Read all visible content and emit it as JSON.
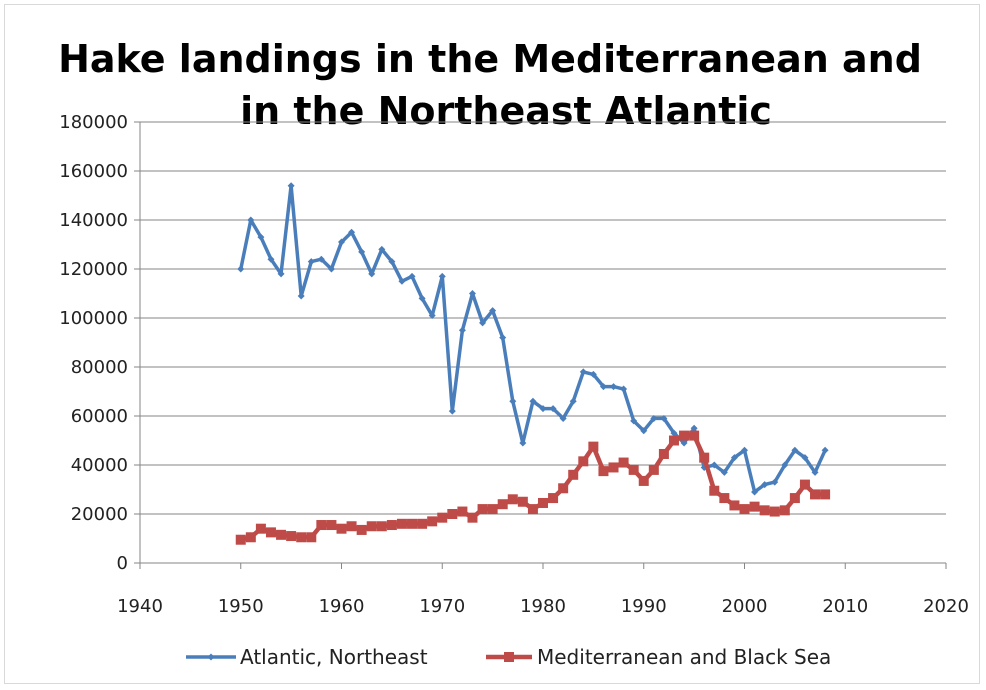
{
  "chart_data": {
    "type": "line",
    "title_lines": [
      "Hake landings in the Mediterranean and",
      "in the Northeast Atlantic"
    ],
    "xlabel": "",
    "ylabel": "",
    "xlim": [
      1940,
      2020
    ],
    "ylim": [
      0,
      180000
    ],
    "x_ticks": [
      1940,
      1950,
      1960,
      1970,
      1980,
      1990,
      2000,
      2010,
      2020
    ],
    "y_ticks": [
      0,
      20000,
      40000,
      60000,
      80000,
      100000,
      120000,
      140000,
      160000,
      180000
    ],
    "grid": "horizontal",
    "legend_position": "bottom",
    "series": [
      {
        "name": "Atlantic, Northeast",
        "color": "#4a7ebb",
        "marker": "diamond",
        "x": [
          1950,
          1951,
          1952,
          1953,
          1954,
          1955,
          1956,
          1957,
          1958,
          1959,
          1960,
          1961,
          1962,
          1963,
          1964,
          1965,
          1966,
          1967,
          1968,
          1969,
          1970,
          1971,
          1972,
          1973,
          1974,
          1975,
          1976,
          1977,
          1978,
          1979,
          1980,
          1981,
          1982,
          1983,
          1984,
          1985,
          1986,
          1987,
          1988,
          1989,
          1990,
          1991,
          1992,
          1993,
          1994,
          1995,
          1996,
          1997,
          1998,
          1999,
          2000,
          2001,
          2002,
          2003,
          2004,
          2005,
          2006,
          2007,
          2008
        ],
        "y": [
          120000,
          140000,
          133000,
          124000,
          118000,
          154000,
          109000,
          123000,
          124000,
          120000,
          131000,
          135000,
          127000,
          118000,
          128000,
          123000,
          115000,
          117000,
          108000,
          101000,
          117000,
          62000,
          95000,
          110000,
          98000,
          103000,
          92000,
          66000,
          49000,
          66000,
          63000,
          63000,
          59000,
          66000,
          78000,
          77000,
          72000,
          72000,
          71000,
          58000,
          54000,
          59000,
          59000,
          53000,
          49000,
          55000,
          39000,
          40000,
          37000,
          43000,
          46000,
          29000,
          32000,
          33000,
          40000,
          46000,
          43000,
          37000,
          46000
        ]
      },
      {
        "name": "Mediterranean and Black Sea",
        "color": "#be4b48",
        "marker": "square",
        "x": [
          1950,
          1951,
          1952,
          1953,
          1954,
          1955,
          1956,
          1957,
          1958,
          1959,
          1960,
          1961,
          1962,
          1963,
          1964,
          1965,
          1966,
          1967,
          1968,
          1969,
          1970,
          1971,
          1972,
          1973,
          1974,
          1975,
          1976,
          1977,
          1978,
          1979,
          1980,
          1981,
          1982,
          1983,
          1984,
          1985,
          1986,
          1987,
          1988,
          1989,
          1990,
          1991,
          1992,
          1993,
          1994,
          1995,
          1996,
          1997,
          1998,
          1999,
          2000,
          2001,
          2002,
          2003,
          2004,
          2005,
          2006,
          2007,
          2008
        ],
        "y": [
          9500,
          10500,
          14000,
          12500,
          11500,
          11000,
          10500,
          10500,
          15500,
          15500,
          14000,
          15000,
          13500,
          15000,
          15000,
          15500,
          16000,
          16000,
          16000,
          17000,
          18500,
          20000,
          21000,
          18500,
          22000,
          22000,
          24000,
          26000,
          25000,
          22000,
          24500,
          26500,
          30500,
          36000,
          41500,
          47500,
          37500,
          39000,
          41000,
          38000,
          33500,
          38000,
          44500,
          50000,
          52000,
          52000,
          43000,
          29500,
          26500,
          23500,
          22000,
          23000,
          21500,
          21000,
          21500,
          26500,
          32000,
          28000,
          28000
        ]
      }
    ]
  }
}
